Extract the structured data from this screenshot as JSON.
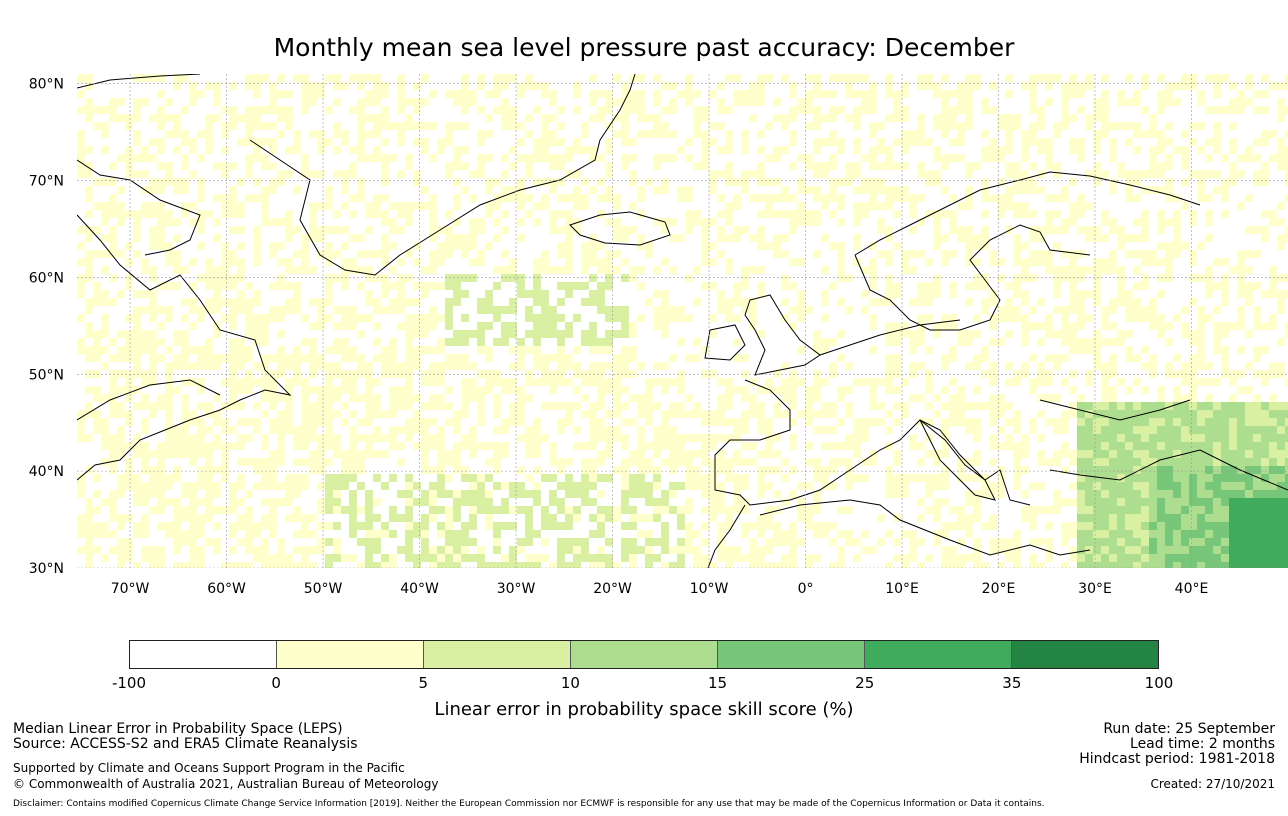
{
  "title": "Monthly mean sea level pressure past accuracy: December",
  "map": {
    "lat_labels": [
      "80°N",
      "70°N",
      "60°N",
      "50°N",
      "40°N",
      "30°N"
    ],
    "lon_labels": [
      "70°W",
      "60°W",
      "50°W",
      "40°W",
      "30°W",
      "20°W",
      "10°W",
      "0°",
      "10°E",
      "20°E",
      "30°E",
      "40°E"
    ],
    "lat_range": [
      30,
      81
    ],
    "lon_range": [
      -75.5,
      50
    ]
  },
  "colorbar": {
    "ticks": [
      "-100",
      "0",
      "5",
      "10",
      "15",
      "25",
      "35",
      "100"
    ],
    "colors": [
      "#ffffff",
      "#ffffcc",
      "#d9f0a3",
      "#addd8e",
      "#78c679",
      "#41ab5d",
      "#238443"
    ],
    "label": "Linear error in probability space skill score (%)"
  },
  "footer": {
    "left": {
      "line1": "Median Linear Error in Probability Space (LEPS)",
      "line2": "Source: ACCESS-S2 and ERA5 Climate Reanalysis",
      "line3": "Supported by Climate and Oceans Support Program in the Pacific",
      "line4": "© Commonwealth of Australia 2021, Australian Bureau of Meteorology"
    },
    "right": {
      "run_date": "Run date: 25 September",
      "lead_time": "Lead time: 2 months",
      "hindcast": "Hindcast period: 1981-2018",
      "created": "Created: 27/10/2021"
    },
    "disclaimer": "Disclaimer: Contains modified Copernicus Climate Change Service Information [2019]. Neither the European Commission nor ECMWF is responsible for any use that may be made of the Copernicus Information or Data it contains."
  }
}
